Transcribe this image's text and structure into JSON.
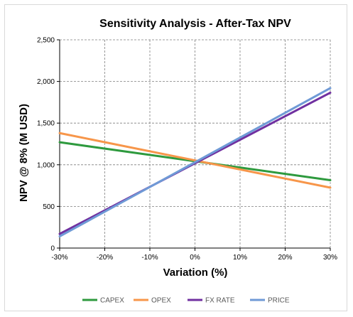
{
  "chart_data": {
    "type": "line",
    "title": "Sensitivity Analysis - After-Tax NPV",
    "xlabel": "Variation (%)",
    "ylabel": "NPV @ 8% (M USD)",
    "x": [
      -30,
      30
    ],
    "x_ticks": [
      "-30%",
      "-20%",
      "-10%",
      "0%",
      "10%",
      "20%",
      "30%"
    ],
    "y_ticks": [
      "0",
      "500",
      "1,000",
      "1,500",
      "2,000",
      "2,500"
    ],
    "xlim": [
      -30,
      30
    ],
    "ylim": [
      0,
      2500
    ],
    "grid": true,
    "legend_position": "bottom",
    "series": [
      {
        "name": "CAPEX",
        "color": "#2e9a3e",
        "values": [
          1270,
          815
        ]
      },
      {
        "name": "OPEX",
        "color": "#f7964a",
        "values": [
          1380,
          725
        ]
      },
      {
        "name": "FX RATE",
        "color": "#7030a0",
        "values": [
          170,
          1865
        ]
      },
      {
        "name": "PRICE",
        "color": "#6f9ad6",
        "values": [
          140,
          1920
        ]
      }
    ]
  }
}
